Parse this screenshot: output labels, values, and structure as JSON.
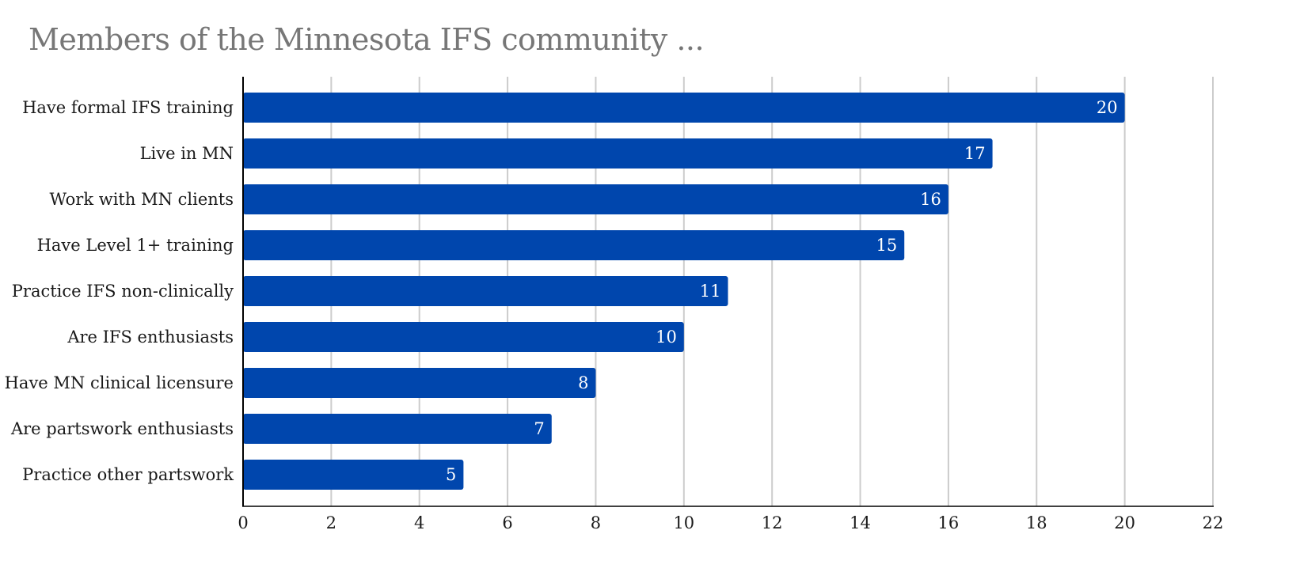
{
  "chart_data": {
    "type": "bar",
    "orientation": "horizontal",
    "title": "Members of the Minnesota IFS community ...",
    "categories": [
      "Have formal IFS training",
      "Live in MN",
      "Work with MN clients",
      "Have Level 1+ training",
      "Practice IFS non-clinically",
      "Are IFS enthusiasts",
      "Have MN clinical licensure",
      "Are partswork enthusiasts",
      "Practice other partswork"
    ],
    "values": [
      20,
      17,
      16,
      15,
      11,
      10,
      8,
      7,
      5
    ],
    "xlim": [
      0,
      22
    ],
    "xticks": [
      "0",
      "2",
      "4",
      "6",
      "8",
      "10",
      "12",
      "14",
      "16",
      "18",
      "20",
      "22"
    ],
    "xlabel": "",
    "ylabel": "",
    "grid": "vertical",
    "legend": "none",
    "bar_color": "#0046AD",
    "grid_color": "#cccccc",
    "axis_color": "#000000",
    "label_color": "#ffffff"
  }
}
